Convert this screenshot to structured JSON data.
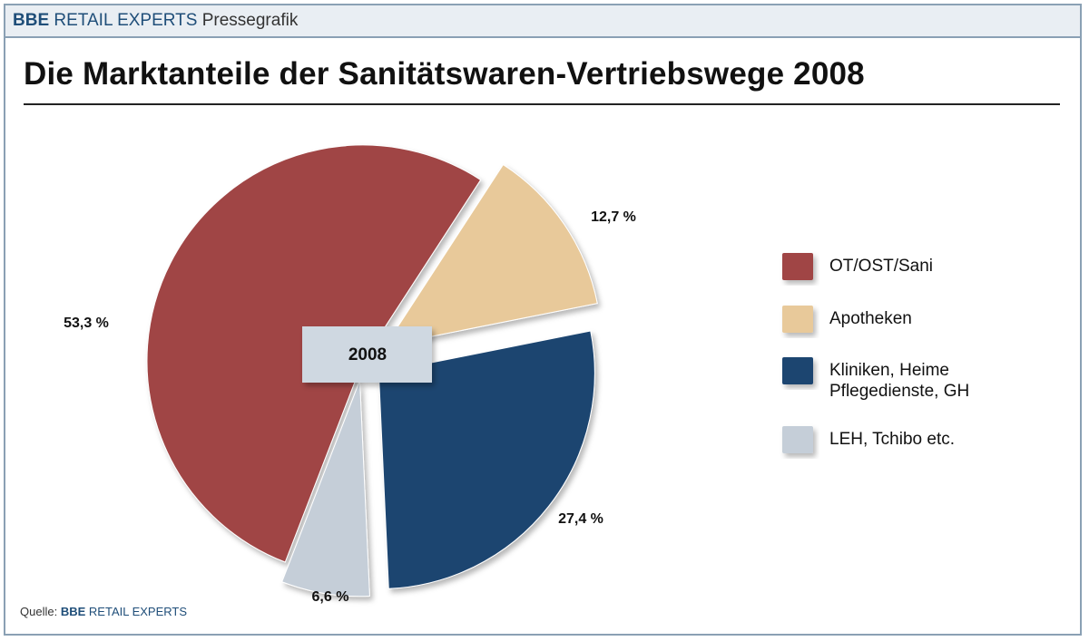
{
  "header": {
    "brand_bbe": "BBE",
    "brand_retail": "RETAIL EXPERTS",
    "brand_presse": "Pressegrafik"
  },
  "source": {
    "prefix": "Quelle:",
    "bbe": "BBE",
    "retail": "RETAIL EXPERTS"
  },
  "chart_data": {
    "type": "pie",
    "title": "Die Marktanteile der Sanitätswaren-Vertriebswege 2008",
    "center_label": "2008",
    "legend_position": "right",
    "slices": [
      {
        "name": "OT/OST/Sani",
        "value": 53.3,
        "label": "53,3 %",
        "color": "#a04545"
      },
      {
        "name": "Apotheken",
        "value": 12.7,
        "label": "12,7 %",
        "color": "#e8c99a"
      },
      {
        "name": "Kliniken, Heime Pflegedienste, GH",
        "legend_lines": [
          "Kliniken, Heime",
          "Pflegedienste, GH"
        ],
        "value": 27.4,
        "label": "27,4 %",
        "color": "#1b4470"
      },
      {
        "name": "LEH, Tchibo etc.",
        "value": 6.6,
        "label": "6,6 %",
        "color": "#c5ced8"
      }
    ]
  }
}
